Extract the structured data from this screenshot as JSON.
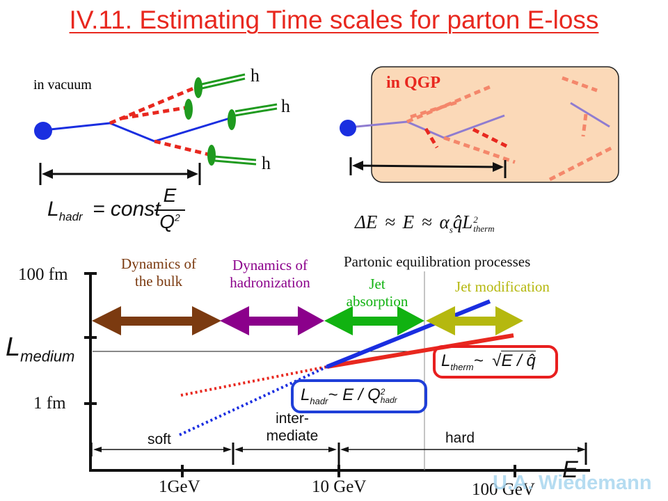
{
  "title": "IV.11. Estimating Time scales for parton E-loss",
  "top_left": {
    "label": "in vacuum",
    "hadron_label": "h",
    "formula": {
      "L": "L",
      "sub": "hadr",
      "rhs": "= const",
      "num": "E",
      "den": "Q",
      "den_sup": "2"
    }
  },
  "top_right": {
    "label": "in QGP",
    "box_color": "#fbd9b8",
    "formula": {
      "delta": "ΔE",
      "approx": "≈",
      "E": "E",
      "alpha": "α",
      "alpha_sub": "s",
      "qhat": "q̂",
      "L": "L",
      "L_sup": "2",
      "L_sub": "therm"
    }
  },
  "axes": {
    "y_label": "L",
    "y_label_sub": "medium",
    "y_ticks": [
      "100 fm",
      "1 fm"
    ],
    "x_label": "E",
    "x_ticks": [
      "1GeV",
      "10 GeV",
      "100 GeV"
    ]
  },
  "processes": [
    {
      "label": "Dynamics of the bulk",
      "line1": "Dynamics of",
      "line2": "the bulk",
      "color": "#7b3a10"
    },
    {
      "label": "Dynamics of hadronization",
      "line1": "Dynamics of",
      "line2": "hadronization",
      "color": "#8b008b"
    },
    {
      "label": "Jet absorption",
      "line1": "Jet",
      "line2": "absorption",
      "color": "#11b211"
    },
    {
      "label": "Jet modification",
      "line1": "Jet modification",
      "line2": "",
      "color": "#b5b80f"
    }
  ],
  "partonic_label": "Partonic equilibration processes",
  "boxes": {
    "hadr": {
      "L": "L",
      "sub": "hadr",
      "rel": "~ E / Q",
      "sup": "2",
      "sub2": "hadr",
      "color": "#1f3fd8"
    },
    "therm": {
      "L": "L",
      "sub": "therm",
      "rel": "~",
      "root": "√",
      "expr": "E / q̂",
      "color": "#e81f1f"
    }
  },
  "regions": {
    "soft": "soft",
    "intermediate_line1": "inter-",
    "intermediate_line2": "mediate",
    "hard": "hard"
  },
  "watermark": "U.A. Wiedemann"
}
